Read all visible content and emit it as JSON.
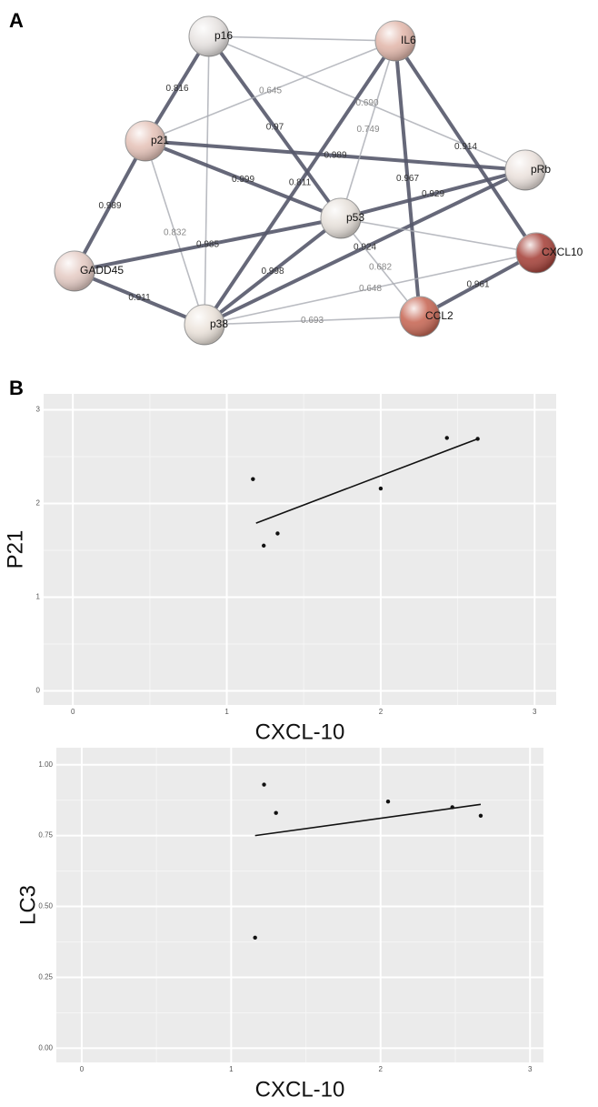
{
  "panel_labels": [
    "A",
    "B"
  ],
  "network": {
    "nodes": [
      {
        "label": "p16",
        "color": "#e8e4e2"
      },
      {
        "label": "IL6",
        "color": "#e3b9ad"
      },
      {
        "label": "p21",
        "color": "#e6c4ba"
      },
      {
        "label": "pRb",
        "color": "#ece3de"
      },
      {
        "label": "p53",
        "color": "#e8e2dc"
      },
      {
        "label": "CXCL10",
        "color": "#a8463e"
      },
      {
        "label": "GADD45",
        "color": "#e6cdc6"
      },
      {
        "label": "p38",
        "color": "#ece4dc"
      },
      {
        "label": "CCL2",
        "color": "#c86a58"
      }
    ],
    "edges": [
      {
        "from": 0,
        "to": 1,
        "strong": false
      },
      {
        "from": 0,
        "to": 2,
        "strong": true,
        "label": "0.816"
      },
      {
        "from": 0,
        "to": 4,
        "strong": true,
        "label": "0.97"
      },
      {
        "from": 0,
        "to": 7,
        "strong": false
      },
      {
        "from": 0,
        "to": 3,
        "strong": false,
        "label": "0.690"
      },
      {
        "from": 2,
        "to": 1,
        "strong": false,
        "label": "0.645"
      },
      {
        "from": 2,
        "to": 3,
        "strong": true,
        "label": "0.989"
      },
      {
        "from": 2,
        "to": 4,
        "strong": true,
        "label": "0.999"
      },
      {
        "from": 2,
        "to": 6,
        "strong": true,
        "label": "0.989"
      },
      {
        "from": 2,
        "to": 7,
        "strong": false,
        "label": "0.832"
      },
      {
        "from": 4,
        "to": 6,
        "strong": true,
        "label": "0.985"
      },
      {
        "from": 4,
        "to": 3,
        "strong": true,
        "label": "0.929"
      },
      {
        "from": 1,
        "to": 7,
        "strong": true,
        "label": "0.811"
      },
      {
        "from": 1,
        "to": 4,
        "strong": false,
        "label": "0.749"
      },
      {
        "from": 1,
        "to": 8,
        "strong": true,
        "label": "0.967"
      },
      {
        "from": 1,
        "to": 5,
        "strong": true,
        "label": "0.914"
      },
      {
        "from": 7,
        "to": 4,
        "strong": true,
        "label": "0.998"
      },
      {
        "from": 7,
        "to": 3,
        "strong": true,
        "label": "0.924"
      },
      {
        "from": 4,
        "to": 8,
        "strong": false,
        "label": "0.682"
      },
      {
        "from": 7,
        "to": 5,
        "strong": false,
        "label": "0.648"
      },
      {
        "from": 7,
        "to": 8,
        "strong": false,
        "label": "0.693"
      },
      {
        "from": 8,
        "to": 5,
        "strong": true,
        "label": "0.961"
      },
      {
        "from": 6,
        "to": 7,
        "strong": true,
        "label": "0.911"
      },
      {
        "from": 4,
        "to": 5,
        "strong": false
      }
    ]
  },
  "chart_data": [
    {
      "type": "scatter",
      "x_label": "CXCL-10",
      "y_label": "P21",
      "x": [
        1.17,
        1.24,
        1.33,
        2.0,
        2.43,
        2.63
      ],
      "y": [
        2.26,
        1.55,
        1.68,
        2.16,
        2.7,
        2.69
      ],
      "fit_line": {
        "x": [
          1.19,
          2.63
        ],
        "y": [
          1.79,
          2.69
        ]
      },
      "xlim": [
        -0.19,
        3.14
      ],
      "ylim": [
        -0.15,
        3.17
      ],
      "xticks": [
        0,
        1,
        2,
        3
      ],
      "yticks": [
        0,
        1,
        2,
        3
      ],
      "grid": true
    },
    {
      "type": "scatter",
      "x_label": "CXCL-10",
      "y_label": "LC3",
      "x": [
        1.22,
        1.3,
        1.16,
        2.05,
        2.48,
        2.67
      ],
      "y": [
        0.93,
        0.83,
        0.39,
        0.87,
        0.85,
        0.82
      ],
      "fit_line": {
        "x": [
          1.16,
          2.67
        ],
        "y": [
          0.75,
          0.86
        ]
      },
      "xlim": [
        -0.17,
        3.09
      ],
      "ylim": [
        -0.05,
        1.06
      ],
      "xticks": [
        0,
        1,
        2,
        3
      ],
      "yticks": [
        {
          "value": 0,
          "label": "0.00"
        },
        {
          "value": 0.25,
          "label": "0.25"
        },
        {
          "value": 0.5,
          "label": "0.50"
        },
        {
          "value": 0.75,
          "label": "0.75"
        },
        {
          "value": 1,
          "label": "1.00"
        }
      ],
      "grid": true
    }
  ]
}
